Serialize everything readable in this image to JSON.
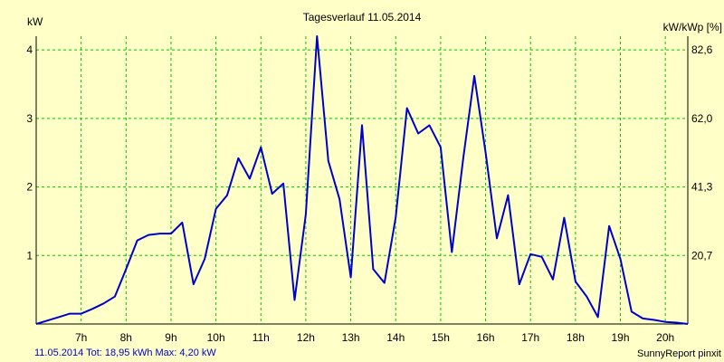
{
  "chart_data": {
    "type": "line",
    "title": "Tagesverlauf 11.05.2014",
    "ylabel_left": "kW",
    "ylabel_right": "kW/kWp [%]",
    "footer_left": "11.05.2014 Tot: 18,95 kWh Max: 4,20 kW",
    "footer_right": "SunnyReport pinxit",
    "x_ticks": [
      "7h",
      "8h",
      "9h",
      "10h",
      "11h",
      "12h",
      "13h",
      "14h",
      "15h",
      "16h",
      "17h",
      "18h",
      "19h",
      "20h"
    ],
    "x_tick_values": [
      7,
      8,
      9,
      10,
      11,
      12,
      13,
      14,
      15,
      16,
      17,
      18,
      19,
      20
    ],
    "xlim": [
      6.0,
      20.5
    ],
    "ylim": [
      0,
      4.2
    ],
    "y_ticks_left": [
      "1",
      "2",
      "3",
      "4"
    ],
    "y_tick_values_left": [
      1,
      2,
      3,
      4
    ],
    "y_ticks_right": [
      "20,7",
      "41,3",
      "62,0",
      "82,6"
    ],
    "y_tick_values_right": [
      1,
      2,
      3,
      4
    ],
    "grid": true,
    "colors": {
      "line": "#0000cc",
      "grid": "#00c800",
      "background": "#ffffc8"
    },
    "series": [
      {
        "x": [
          6.0,
          6.25,
          6.5,
          6.75,
          7.0,
          7.25,
          7.5,
          7.75,
          8.0,
          8.25,
          8.5,
          8.75,
          9.0,
          9.25,
          9.5,
          9.75,
          10.0,
          10.25,
          10.5,
          10.75,
          11.0,
          11.25,
          11.5,
          11.75,
          12.0,
          12.25,
          12.5,
          12.75,
          13.0,
          13.25,
          13.5,
          13.75,
          14.0,
          14.25,
          14.5,
          14.75,
          15.0,
          15.25,
          15.5,
          15.75,
          16.0,
          16.25,
          16.5,
          16.75,
          17.0,
          17.25,
          17.5,
          17.75,
          18.0,
          18.25,
          18.5,
          18.75,
          19.0,
          19.25,
          19.5,
          19.75,
          20.0,
          20.25,
          20.5
        ],
        "values": [
          0.0,
          0.05,
          0.1,
          0.15,
          0.15,
          0.22,
          0.3,
          0.4,
          0.8,
          1.22,
          1.3,
          1.32,
          1.32,
          1.48,
          0.58,
          0.95,
          1.68,
          1.88,
          2.42,
          2.12,
          2.58,
          1.9,
          2.05,
          0.35,
          1.6,
          4.2,
          2.38,
          1.82,
          0.68,
          2.9,
          0.8,
          0.6,
          1.55,
          3.15,
          2.78,
          2.9,
          2.58,
          1.05,
          2.4,
          3.62,
          2.5,
          1.25,
          1.88,
          0.58,
          1.02,
          0.98,
          0.65,
          1.55,
          0.62,
          0.4,
          0.1,
          1.43,
          0.95,
          0.18,
          0.08,
          0.06,
          0.03,
          0.02,
          0.0
        ]
      }
    ]
  }
}
